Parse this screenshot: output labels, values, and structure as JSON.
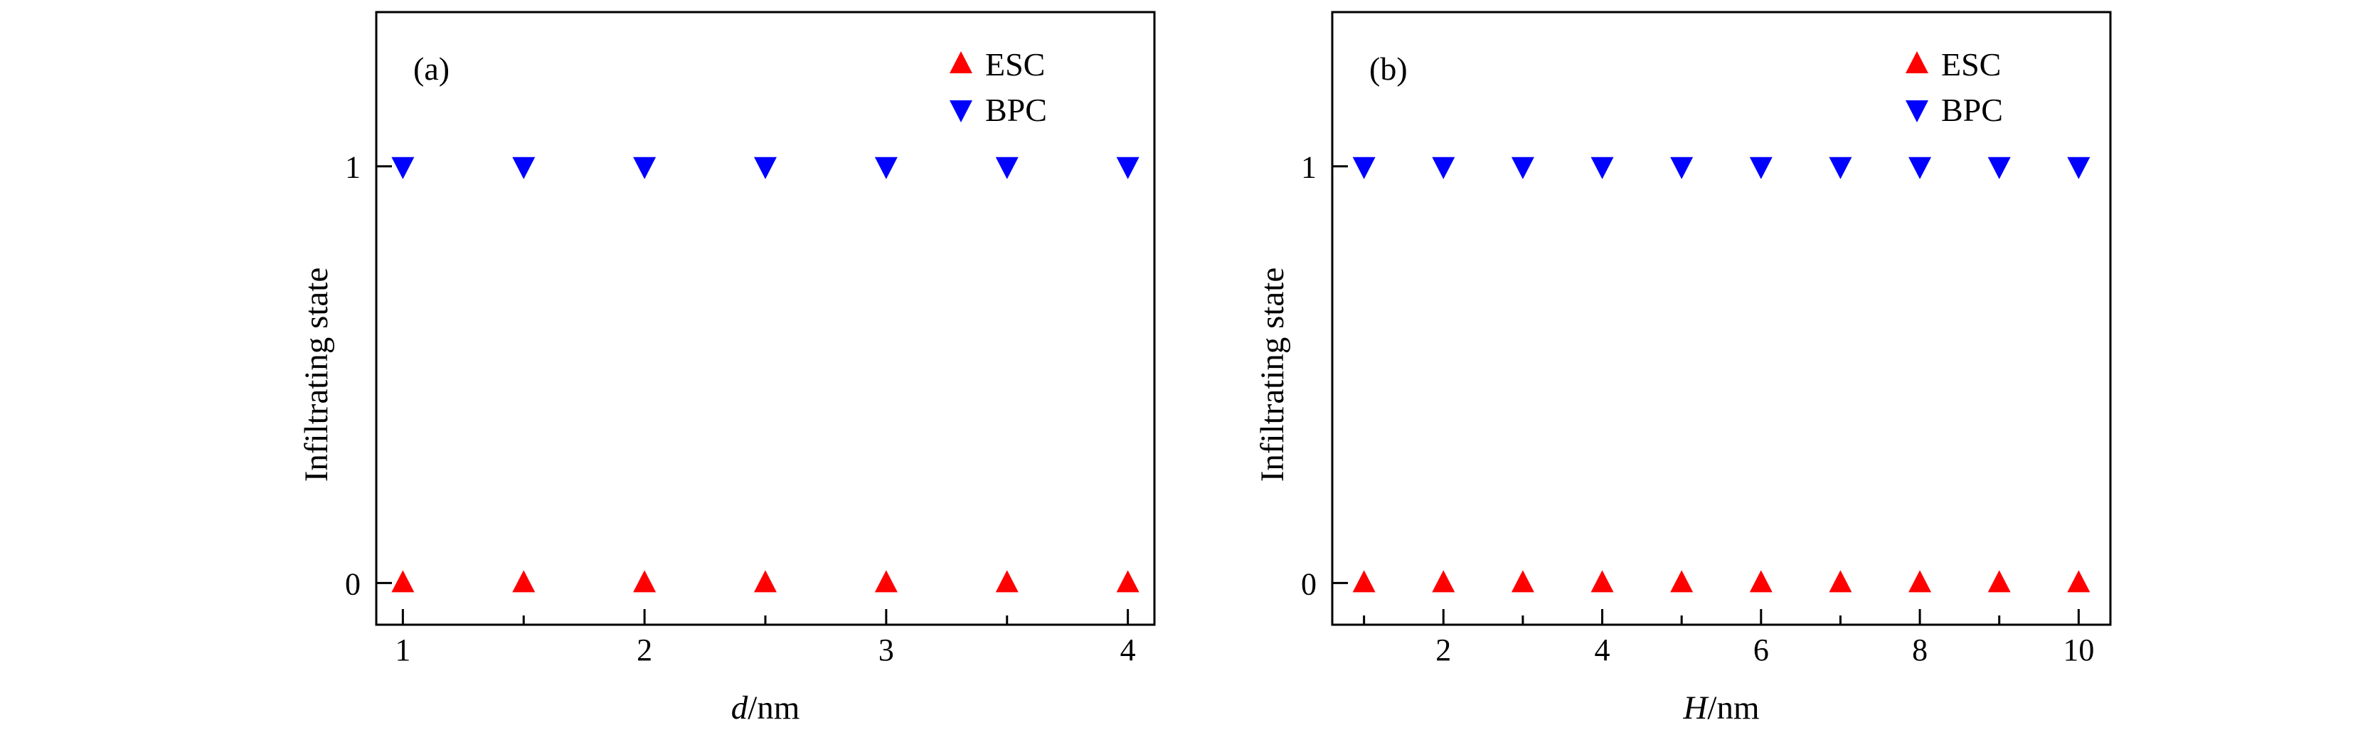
{
  "figure": {
    "background": "#ffffff",
    "text_color": "#000000",
    "axis_color": "#000000"
  },
  "chart_data": [
    {
      "type": "scatter",
      "panel_label": "(a)",
      "xlabel_var": "d",
      "xlabel_unit": "/nm",
      "ylabel": "Infiltrating state",
      "xlim": [
        0.89,
        4.11
      ],
      "ylim": [
        -0.1,
        1.37
      ],
      "x_major_ticks": [
        1,
        2,
        3,
        4
      ],
      "x_minor_ticks": [
        1.5,
        2.5,
        3.5
      ],
      "y_major_ticks": [
        0,
        1
      ],
      "grid": false,
      "legend_position": "upper right inside",
      "series": [
        {
          "name": "ESC",
          "marker": "triangle-up",
          "color": "#ff0000",
          "x": [
            1,
            1.5,
            2,
            2.5,
            3,
            3.5,
            4
          ],
          "y": [
            0,
            0,
            0,
            0,
            0,
            0,
            0
          ]
        },
        {
          "name": "BPC",
          "marker": "triangle-down",
          "color": "#0000ff",
          "x": [
            1,
            1.5,
            2,
            2.5,
            3,
            3.5,
            4
          ],
          "y": [
            1,
            1,
            1,
            1,
            1,
            1,
            1
          ]
        }
      ]
    },
    {
      "type": "scatter",
      "panel_label": "(b)",
      "xlabel_var": "H",
      "xlabel_unit": "/nm",
      "ylabel": "Infiltrating state",
      "xlim": [
        0.6,
        10.4
      ],
      "ylim": [
        -0.1,
        1.37
      ],
      "x_major_ticks": [
        2,
        4,
        6,
        8,
        10
      ],
      "x_minor_ticks": [
        1,
        3,
        5,
        7,
        9
      ],
      "y_major_ticks": [
        0,
        1
      ],
      "grid": false,
      "legend_position": "upper right inside",
      "series": [
        {
          "name": "ESC",
          "marker": "triangle-up",
          "color": "#ff0000",
          "x": [
            1,
            2,
            3,
            4,
            5,
            6,
            7,
            8,
            9,
            10
          ],
          "y": [
            0,
            0,
            0,
            0,
            0,
            0,
            0,
            0,
            0,
            0
          ]
        },
        {
          "name": "BPC",
          "marker": "triangle-down",
          "color": "#0000ff",
          "x": [
            1,
            2,
            3,
            4,
            5,
            6,
            7,
            8,
            9,
            10
          ],
          "y": [
            1,
            1,
            1,
            1,
            1,
            1,
            1,
            1,
            1,
            1
          ]
        }
      ]
    }
  ]
}
